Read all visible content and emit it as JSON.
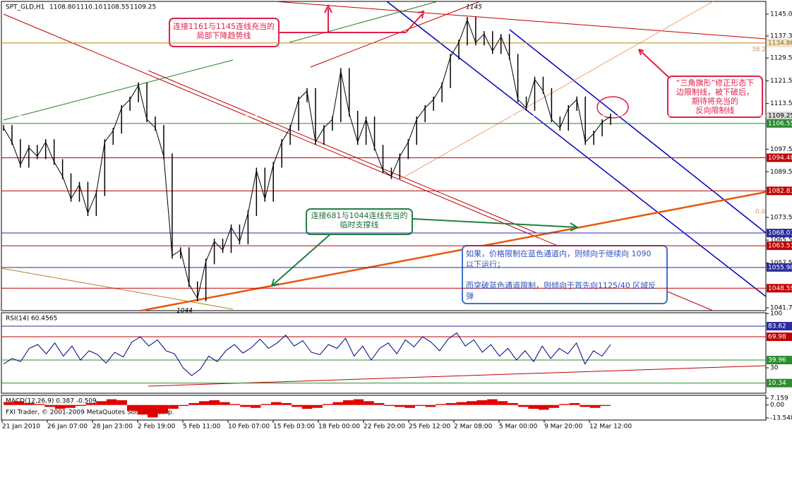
{
  "header": {
    "symbol": "SPT_GLD,H1",
    "ohlc": [
      "1108.80",
      "1110.10",
      "1108.55",
      "1109.25"
    ]
  },
  "price_axis": {
    "ylim": [
      1041.7,
      1145
    ],
    "ticks": [
      {
        "value": 1145,
        "label": "1145.00"
      },
      {
        "value": 1137.3,
        "label": "1137.30"
      },
      {
        "value": 1129.55,
        "label": "1129.55"
      },
      {
        "value": 1121.5,
        "label": "1121.50"
      },
      {
        "value": 1113.55,
        "label": "1113.55"
      },
      {
        "value": 1097.5,
        "label": "1097.50"
      },
      {
        "value": 1089.55,
        "label": "1089.55"
      },
      {
        "value": 1073.5,
        "label": "1073.50"
      },
      {
        "value": 1065.5,
        "label": "1065.50"
      },
      {
        "value": 1057.5,
        "label": "1057.50"
      },
      {
        "value": 1041.7,
        "label": "1041.70"
      }
    ],
    "levels": [
      {
        "value": 1134.86,
        "label": "1134.86",
        "color": "#b8860b",
        "bg": "#f3e2c4",
        "fg": "#8a6a3a"
      },
      {
        "value": 1109.25,
        "label": "1109.25",
        "color": "#ffffff",
        "bg": "#d8d8d8",
        "fg": "#000000"
      },
      {
        "value": 1106.55,
        "label": "1106.55",
        "color": "#2e8b2e",
        "bg": "#2e8b2e",
        "fg": "#ffffff"
      },
      {
        "value": 1094.48,
        "label": "1094.48",
        "color": "#c00000",
        "bg": "#c00000",
        "fg": "#ffffff"
      },
      {
        "value": 1082.83,
        "label": "1082.83",
        "color": "#c00000",
        "bg": "#c00000",
        "fg": "#ffffff"
      },
      {
        "value": 1068.01,
        "label": "1068.01",
        "color": "#2b2b9c",
        "bg": "#2b2b9c",
        "fg": "#ffffff"
      },
      {
        "value": 1063.53,
        "label": "1063.53",
        "color": "#c00000",
        "bg": "#c00000",
        "fg": "#ffffff"
      },
      {
        "value": 1055.9,
        "label": "1055.90",
        "color": "#2b2b9c",
        "bg": "#2b2b9c",
        "fg": "#ffffff"
      },
      {
        "value": 1048.59,
        "label": "1048.59",
        "color": "#c00000",
        "bg": "#c00000",
        "fg": "#ffffff"
      }
    ],
    "price": [
      1105,
      1100,
      1092,
      1098,
      1095,
      1100,
      1093,
      1088,
      1080,
      1085,
      1075,
      1082,
      1100,
      1104,
      1112,
      1115,
      1120,
      1108,
      1105,
      1095,
      1060,
      1062,
      1050,
      1045,
      1058,
      1065,
      1062,
      1070,
      1065,
      1075,
      1090,
      1080,
      1092,
      1100,
      1105,
      1115,
      1118,
      1100,
      1105,
      1108,
      1125,
      1110,
      1100,
      1108,
      1098,
      1090,
      1088,
      1095,
      1100,
      1108,
      1112,
      1115,
      1120,
      1130,
      1135,
      1143,
      1135,
      1138,
      1132,
      1137,
      1130,
      1115,
      1112,
      1122,
      1118,
      1108,
      1105,
      1112,
      1115,
      1100,
      1103,
      1107,
      1109
    ]
  },
  "chart_labels": {
    "high": "1145",
    "low": "1044",
    "fib_382": "38.2",
    "fib_0": "0.0"
  },
  "annotations": {
    "red_top": [
      "连接1161与1145连线充当的",
      "局部下降趋势线"
    ],
    "red_right": [
      "“三角旗形”修正形态下",
      "边限制线，被下破后，",
      "期待将充当的",
      "反向限制线"
    ],
    "green": [
      "连接681与1044连线充当的",
      "临时支撑线"
    ],
    "blue": [
      "如果，价格限制在蓝色通道内，则倾向于继续向 1090",
      "以下运行；",
      "",
      "而突破蓝色通道限制，则倾向于首先向1125/40 区域反",
      "弹"
    ]
  },
  "rsi": {
    "title": "RSI(14) 60.4565",
    "ylim": [
      0,
      100
    ],
    "ticks": [
      100,
      30
    ],
    "levels": [
      {
        "value": 83.62,
        "label": "83.62",
        "bg": "#2b2b9c"
      },
      {
        "value": 69.98,
        "label": "69.98",
        "bg": "#c00000"
      },
      {
        "value": 39.96,
        "label": "39.96",
        "bg": "#2e8b2e"
      },
      {
        "value": 10.34,
        "label": "10.34",
        "bg": "#2e8b2e"
      }
    ],
    "values": [
      35,
      42,
      38,
      55,
      60,
      48,
      62,
      45,
      58,
      40,
      52,
      47,
      36,
      50,
      44,
      63,
      70,
      58,
      66,
      52,
      48,
      30,
      20,
      28,
      45,
      38,
      52,
      60,
      49,
      56,
      67,
      55,
      62,
      72,
      58,
      65,
      50,
      47,
      60,
      55,
      68,
      45,
      58,
      40,
      55,
      62,
      48,
      66,
      57,
      70,
      63,
      52,
      67,
      75,
      58,
      66,
      50,
      60,
      45,
      55,
      40,
      52,
      38,
      58,
      42,
      55,
      48,
      62,
      35,
      52,
      45,
      60
    ]
  },
  "macd": {
    "title": "MACD(12,26,9) 0.387 -0.509",
    "ticks": [
      {
        "value": 7.159,
        "label": "7.159"
      },
      {
        "value": 0,
        "label": "0.00"
      },
      {
        "value": -13.548,
        "label": "-13.548"
      }
    ],
    "values": [
      3,
      4,
      2,
      1,
      -2,
      -4,
      -3,
      -1,
      2,
      4,
      6,
      5,
      -6,
      -10,
      -13,
      -9,
      -4,
      -1,
      2,
      4,
      5,
      3,
      1,
      -2,
      -3,
      1,
      3,
      2,
      -2,
      -4,
      -3,
      1,
      3,
      5,
      6,
      4,
      2,
      -1,
      -2,
      -3,
      -1,
      -2,
      1,
      2,
      3,
      4,
      5,
      6,
      4,
      2,
      -2,
      -4,
      -5,
      -3,
      1,
      2,
      -2,
      -3,
      -1
    ]
  },
  "copyright": "FXI Trader, © 2001-2009 MetaQuotes Software Corp.",
  "time_axis": [
    "21 Jan 2010",
    "26 Jan 07:00",
    "28 Jan 23:00",
    "2 Feb 19:00",
    "5 Feb 11:00",
    "10 Feb 07:00",
    "15 Feb 03:00",
    "18 Feb 00:00",
    "22 Feb 20:00",
    "25 Feb 12:00",
    "2 Mar 08:00",
    "5 Mar 00:00",
    "9 Mar 20:00",
    "12 Mar 12:00"
  ]
}
